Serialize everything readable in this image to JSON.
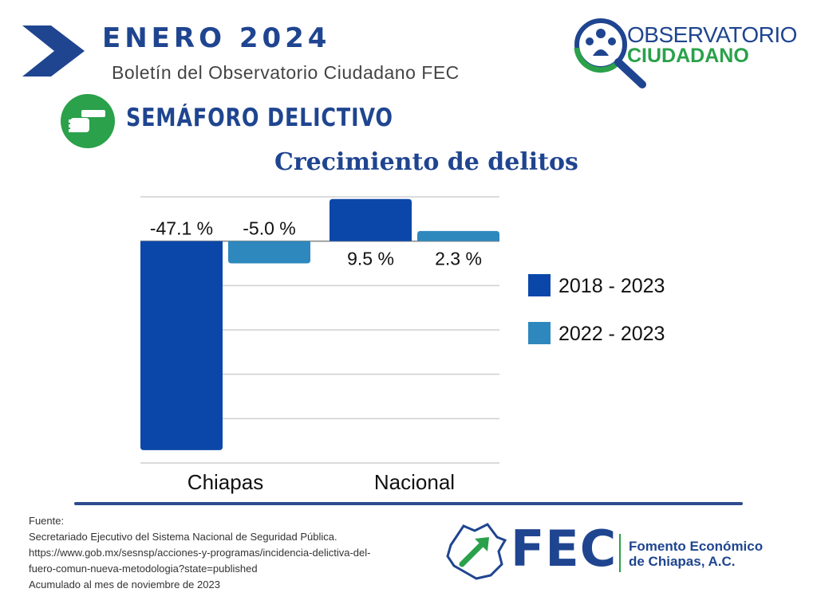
{
  "header": {
    "month_title": "ENERO  2024",
    "subtitle": "Boletín del Observatorio Ciudadano FEC"
  },
  "logo_observatorio": {
    "line1": "OBSERVATORIO",
    "line2": "CIUDADANO"
  },
  "section": {
    "title": "SEMÁFORO DELICTIVO",
    "icon": "pistol-icon"
  },
  "chart_data": {
    "type": "bar",
    "title": "Crecimiento de delitos",
    "categories": [
      "Chiapas",
      "Nacional"
    ],
    "series": [
      {
        "name": "2018 - 2023",
        "values": [
          -47.1,
          9.5
        ],
        "labels": [
          "-47.1 %",
          "9.5 %"
        ],
        "color": "#0a47a9"
      },
      {
        "name": "2022 - 2023",
        "values": [
          -5.0,
          2.3
        ],
        "labels": [
          "-5.0 %",
          "2.3 %"
        ],
        "color": "#2e88bd"
      }
    ],
    "ylim": [
      -50,
      10
    ],
    "grid": true,
    "legend": "right"
  },
  "footer": {
    "source_lines": [
      "Fuente:",
      "Secretariado Ejecutivo del Sistema Nacional de Seguridad Pública.",
      "https://www.gob.mx/sesnsp/acciones-y-programas/incidencia-delictiva-del-",
      "fuero-comun-nueva-metodologia?state=published",
      "Acumulado al mes de noviembre de 2023"
    ],
    "fec_logo": {
      "abbr": "FEC",
      "line1": "Fomento Económico",
      "line2": "de Chiapas, A.C."
    }
  },
  "colors": {
    "brand_blue": "#1f4590",
    "brand_green": "#2aa14a"
  }
}
